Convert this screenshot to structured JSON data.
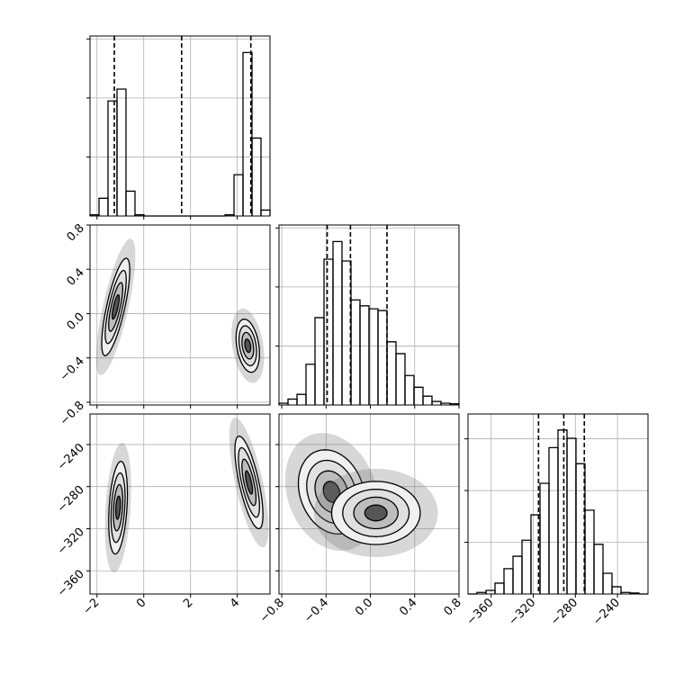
{
  "chart_data": {
    "type": "corner",
    "parameters": [
      {
        "lim": [
          -2.3,
          5.4
        ],
        "ticks": [
          {
            "value": -2,
            "label": "−2"
          },
          0,
          2,
          4
        ]
      },
      {
        "lim": [
          -0.825,
          0.8
        ],
        "ticks": [
          {
            "value": -0.8,
            "label": "−0.8"
          },
          {
            "value": -0.4,
            "label": "−0.4"
          },
          {
            "value": 0,
            "label": "0.0"
          },
          0.4,
          0.8
        ]
      },
      {
        "lim": [
          -382,
          -211
        ],
        "ticks": [
          {
            "value": -360,
            "label": "−360"
          },
          {
            "value": -320,
            "label": "−320"
          },
          {
            "value": -280,
            "label": "−280"
          },
          {
            "value": -240,
            "label": "−240"
          }
        ]
      }
    ],
    "histograms": [
      {
        "bins": [
          -2.3,
          -1.915,
          -1.53,
          -1.145,
          -0.76,
          -0.375,
          0.01,
          0.395,
          0.78,
          1.165,
          1.55,
          1.935,
          2.32,
          2.705,
          3.09,
          3.475,
          3.86,
          4.245,
          4.63,
          5.015,
          5.4
        ],
        "counts": [
          0.02,
          0.3,
          1.95,
          2.15,
          0.42,
          0.02,
          0,
          0,
          0,
          0,
          0,
          0,
          0,
          0,
          0,
          0.02,
          0.7,
          2.77,
          1.32,
          0.1
        ],
        "ylim": [
          0,
          3.05
        ],
        "yticks": [
          1,
          2,
          3
        ],
        "quantiles": [
          -1.26,
          1.62,
          4.58
        ]
      },
      {
        "bins": [
          -0.825,
          -0.74375,
          -0.6625,
          -0.58125,
          -0.5,
          -0.41875,
          -0.3375,
          -0.25625,
          -0.175,
          -0.09375,
          -0.0125,
          0.06875,
          0.15,
          0.23125,
          0.3125,
          0.39375,
          0.475,
          0.55625,
          0.6375,
          0.71875,
          0.8
        ],
        "counts": [
          0.03,
          0.1,
          0.18,
          0.69,
          1.48,
          2.47,
          2.77,
          2.44,
          1.78,
          1.68,
          1.63,
          1.6,
          1.07,
          0.87,
          0.5,
          0.3,
          0.15,
          0.06,
          0.03,
          0.02
        ],
        "ylim": [
          0,
          3.05
        ],
        "yticks": [
          1,
          2,
          3
        ],
        "quantiles": [
          -0.39,
          -0.18,
          0.15
        ]
      },
      {
        "bins": [
          -382,
          -373.45,
          -364.9,
          -356.35,
          -347.8,
          -339.25,
          -330.7,
          -322.15,
          -313.6,
          -305.05,
          -296.5,
          -287.95,
          -279.4,
          -270.85,
          -262.3,
          -253.75,
          -245.2,
          -236.65,
          -228.1,
          -219.55,
          -211
        ],
        "counts": [
          0,
          0.03,
          0.07,
          0.21,
          0.49,
          0.73,
          1.04,
          1.53,
          2.14,
          2.83,
          3.17,
          3.01,
          2.52,
          1.62,
          0.96,
          0.4,
          0.14,
          0.03,
          0.02,
          0
        ],
        "ylim": [
          0,
          3.48
        ],
        "yticks": [
          1,
          2,
          3
        ],
        "quantiles": [
          -315,
          -291,
          -271.5
        ]
      }
    ],
    "panels": [
      {
        "clusters": [
          {
            "x": -1.2,
            "y": 0.06,
            "sx": 0.3,
            "sy": 0.22,
            "rho": 0.75
          },
          {
            "x": 4.45,
            "y": -0.29,
            "sx": 0.25,
            "sy": 0.12,
            "rho": -0.3
          }
        ]
      },
      {
        "clusters": [
          {
            "x": -1.1,
            "y": -300,
            "sx": 0.2,
            "sy": 22,
            "rho": 0.3
          },
          {
            "x": 4.5,
            "y": -276,
            "sx": 0.3,
            "sy": 22,
            "rho": -0.7
          }
        ]
      },
      {
        "clusters": [
          {
            "x": -0.35,
            "y": -285,
            "sx": 0.15,
            "sy": 20,
            "rho": -0.2
          },
          {
            "x": 0.05,
            "y": -305,
            "sx": 0.2,
            "sy": 15,
            "rho": 0
          }
        ]
      }
    ]
  }
}
